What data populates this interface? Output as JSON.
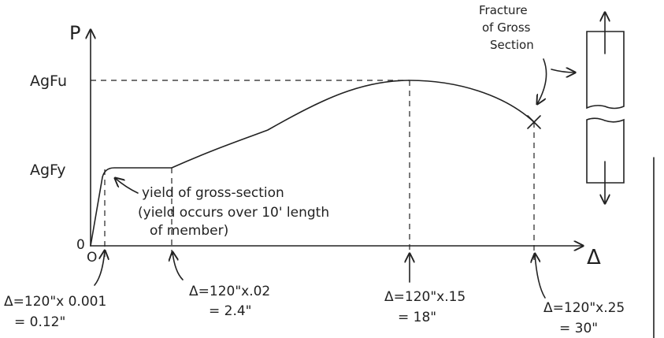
{
  "axes": {
    "y_label": "P",
    "x_label": "Δ",
    "y_origin": "0",
    "x_origin": "O"
  },
  "levels": {
    "ultimate": "AgFu",
    "yield": "AgFy"
  },
  "annotations": {
    "fracture": [
      "Fracture",
      "of Gross",
      "Section"
    ],
    "yield": [
      "yield of gross-section",
      "(yield occurs over 10' length",
      "of member)"
    ]
  },
  "strain_points": [
    {
      "formula": "Δ=120\"x 0.001",
      "result": "= 0.12\""
    },
    {
      "formula": "Δ=120\"x.02",
      "result": "= 2.4\""
    },
    {
      "formula": "Δ=120\"x.15",
      "result": "= 18\""
    },
    {
      "formula": "Δ=120\"x.25",
      "result": "= 30\""
    }
  ]
}
